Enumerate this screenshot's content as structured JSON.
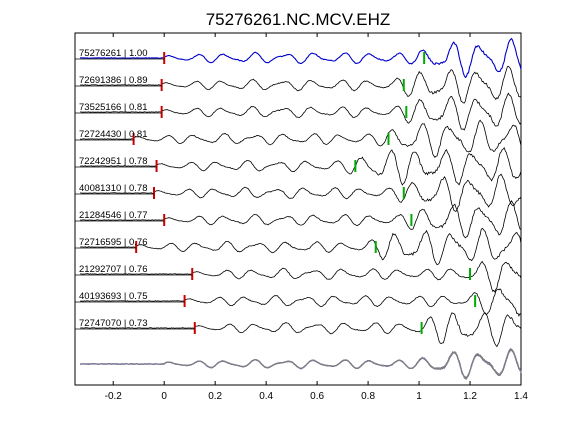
{
  "chart_data": {
    "type": "line",
    "title": "75276261.NC.MCV.EHZ",
    "xlabel": "",
    "ylabel": "",
    "xlim": [
      -0.35,
      1.4
    ],
    "xticks": [
      -0.2,
      0,
      0.2,
      0.4,
      0.6,
      0.8,
      1,
      1.2,
      1.4
    ],
    "xtick_labels": [
      "-0.2",
      "0",
      "0.2",
      "0.4",
      "0.6",
      "0.8",
      "1",
      "1.2",
      "1.4"
    ],
    "grid": false,
    "colors": {
      "reference": "#0000cc",
      "trace": "#000000",
      "stack_gray": "#808080",
      "p_pick": "#cc0000",
      "s_pick": "#00aa00"
    },
    "traces": [
      {
        "label": "75276261 | 1.00",
        "p_pick": 0.0,
        "s_pick": 1.02,
        "reference": true
      },
      {
        "label": "72691386 | 0.89",
        "p_pick": -0.01,
        "s_pick": 0.94
      },
      {
        "label": "73525166 | 0.81",
        "p_pick": -0.01,
        "s_pick": 0.95
      },
      {
        "label": "72724430 | 0.81",
        "p_pick": -0.12,
        "s_pick": 0.88
      },
      {
        "label": "72242951 | 0.78",
        "p_pick": -0.03,
        "s_pick": 0.75
      },
      {
        "label": "40081310 | 0.78",
        "p_pick": -0.04,
        "s_pick": 0.94
      },
      {
        "label": "21284546 | 0.77",
        "p_pick": 0.0,
        "s_pick": 0.97
      },
      {
        "label": "72716595 | 0.76",
        "p_pick": -0.11,
        "s_pick": 0.83
      },
      {
        "label": "21292707 | 0.76",
        "p_pick": 0.11,
        "s_pick": 1.2
      },
      {
        "label": "40193693 | 0.75",
        "p_pick": 0.08,
        "s_pick": 1.22
      },
      {
        "label": "72747070 | 0.73",
        "p_pick": 0.12,
        "s_pick": 1.01
      }
    ],
    "stack": {
      "label": "",
      "overlay": true
    }
  }
}
